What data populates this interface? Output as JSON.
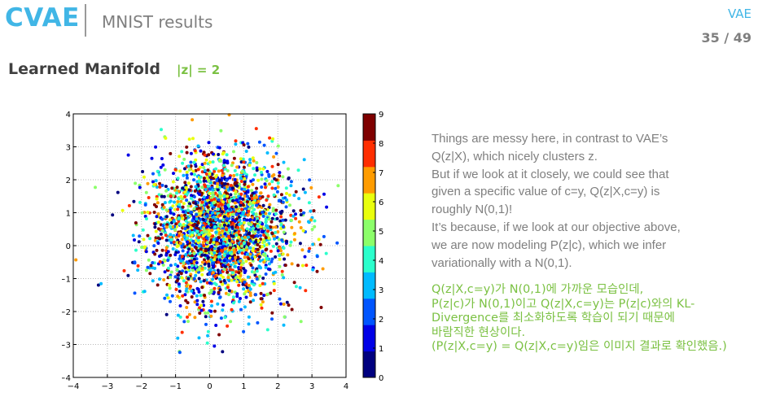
{
  "header": {
    "title": "CVAE",
    "subtitle": "MNIST results",
    "section": "VAE",
    "page": "35 / 49"
  },
  "slide": {
    "heading": "Learned Manifold",
    "dim_label": "|z| = 2"
  },
  "text_en": [
    "Things are messy here, in contrast to VAE’s",
    "Q(z|X), which nicely clusters z.",
    "But if we look at it closely, we could see that",
    "given a specific value of c=y, Q(z|X,c=y) is",
    "roughly N(0,1)!",
    "It’s because, if we look at our objective above,",
    "we are now modeling P(z|c), which we infer",
    "variationally with a N(0,1)."
  ],
  "text_kr": [
    "Q(z|X,c=y)가 N(0,1)에 가까운 모습인데,",
    "P(z|c)가 N(0,1)이고 Q(z|X,c=y)는 P(z|c)와의 KL-",
    "Divergence를 최소화하도록 학습이 되기 때문에",
    "바람직한 현상이다.",
    "(P(z|X,c=y) = Q(z|X,c=y)임은 이미지 결과로 확인했음.)"
  ],
  "colors": {
    "accent_blue": "#41b6e6",
    "accent_green": "#7bc143",
    "gray_text": "#7f7f7f"
  },
  "chart_data": {
    "type": "scatter",
    "title": "",
    "xlabel": "",
    "ylabel": "",
    "xlim": [
      -4,
      4
    ],
    "ylim": [
      -4,
      4
    ],
    "xticks": [
      -4,
      -3,
      -2,
      -1,
      0,
      1,
      2,
      3,
      4
    ],
    "yticks": [
      -4,
      -3,
      -2,
      -1,
      0,
      1,
      2,
      3,
      4
    ],
    "grid": true,
    "point_count_estimate": 3000,
    "distribution": "approximately standard bivariate normal N(0,1), centered near (0.3, 0.5), points colored by digit class 0-9",
    "colorbar": {
      "ticks": [
        0,
        1,
        2,
        3,
        4,
        5,
        6,
        7,
        8,
        9
      ],
      "colormap": "jet",
      "colors": [
        "#00007f",
        "#0000e6",
        "#0055ff",
        "#00bbff",
        "#2bffcc",
        "#8cff6a",
        "#e9ff0d",
        "#ff9c00",
        "#ff2e00",
        "#7f0000"
      ]
    }
  }
}
